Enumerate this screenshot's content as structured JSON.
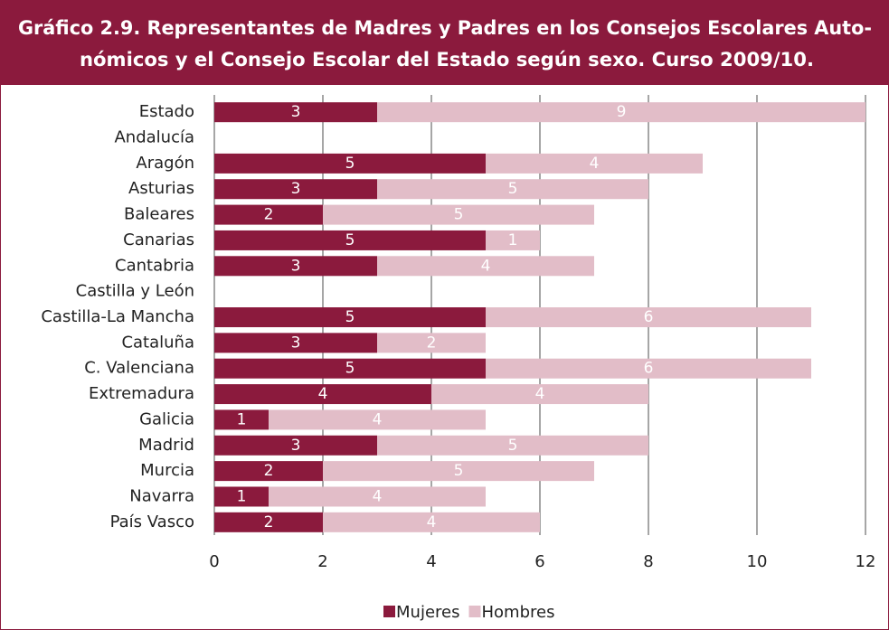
{
  "chart_data": {
    "type": "stacked-bar-horizontal",
    "title": [
      "Gráfico 2.9. Representantes de Madres y Padres en los Consejos Escolares Auto-",
      "nómicos y el Consejo Escolar del Estado según sexo. Curso 2009/10."
    ],
    "categories": [
      "Estado",
      "Andalucía",
      "Aragón",
      "Asturias",
      "Baleares",
      "Canarias",
      "Cantabria",
      "Castilla y León",
      "Castilla-La Mancha",
      "Cataluña",
      "C.  Valenciana",
      "Extremadura",
      "Galicia",
      "Madrid",
      "Murcia",
      "Navarra",
      "País Vasco"
    ],
    "series": [
      {
        "name": "Mujeres",
        "color": "#8b1a3d",
        "values": [
          3,
          null,
          5,
          3,
          2,
          5,
          3,
          null,
          5,
          3,
          5,
          4,
          1,
          3,
          2,
          1,
          2
        ]
      },
      {
        "name": "Hombres",
        "color": "#e2bdc8",
        "values": [
          9,
          null,
          4,
          5,
          5,
          1,
          4,
          null,
          6,
          2,
          6,
          4,
          4,
          5,
          5,
          4,
          4
        ]
      }
    ],
    "xlim": [
      0,
      12
    ],
    "xticks": [
      0,
      2,
      4,
      6,
      8,
      10,
      12
    ],
    "grid": true,
    "legend": "bottom"
  }
}
